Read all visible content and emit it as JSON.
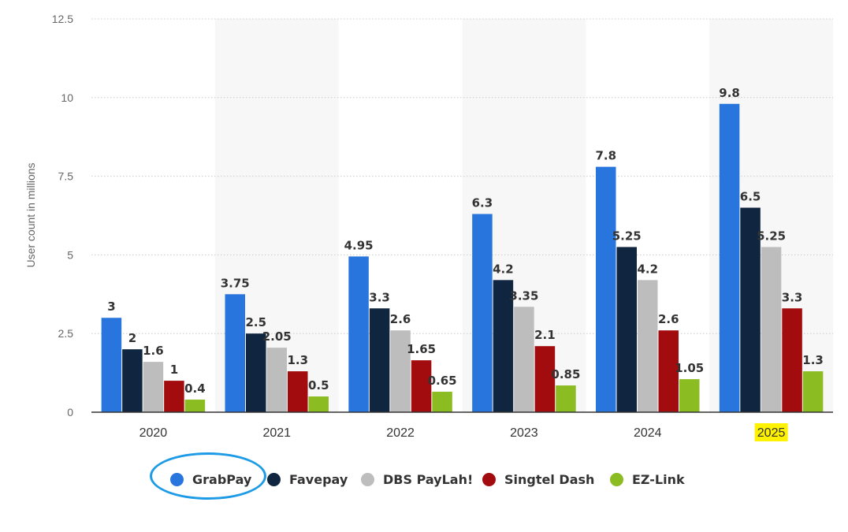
{
  "chart_data": {
    "type": "bar",
    "categories": [
      "2020",
      "2021",
      "2022",
      "2023",
      "2024",
      "2025"
    ],
    "highlighted_category": "2025",
    "highlight_color": "#fff200",
    "ylabel": "User count in millions",
    "ylim": [
      0,
      12.5
    ],
    "yticks": [
      "0",
      "2.5",
      "5",
      "7.5",
      "10",
      "12.5"
    ],
    "grid": true,
    "legend_position": "bottom",
    "series": [
      {
        "name": "GrabPay",
        "color": "#2876dd",
        "values": [
          3,
          3.75,
          4.95,
          6.3,
          7.8,
          9.8
        ],
        "labels": [
          "3",
          "3.75",
          "4.95",
          "6.3",
          "7.8",
          "9.8"
        ]
      },
      {
        "name": "Favepay",
        "color": "#10253f",
        "values": [
          2,
          2.5,
          3.3,
          4.2,
          5.25,
          6.5
        ],
        "labels": [
          "2",
          "2.5",
          "3.3",
          "4.2",
          "5.25",
          "6.5"
        ]
      },
      {
        "name": "DBS PayLah!",
        "color": "#bdbdbd",
        "values": [
          1.6,
          2.05,
          2.6,
          3.35,
          4.2,
          5.25
        ],
        "labels": [
          "1.6",
          "2.05",
          "2.6",
          "3.35",
          "4.2",
          "5.25"
        ]
      },
      {
        "name": "Singtel Dash",
        "color": "#a20c0f",
        "values": [
          1,
          1.3,
          1.65,
          2.1,
          2.6,
          3.3
        ],
        "labels": [
          "1",
          "1.3",
          "1.65",
          "2.1",
          "2.6",
          "3.3"
        ]
      },
      {
        "name": "EZ-Link",
        "color": "#8bbc21",
        "values": [
          0.4,
          0.5,
          0.65,
          0.85,
          1.05,
          1.3
        ],
        "labels": [
          "0.4",
          "0.5",
          "0.65",
          "0.85",
          "1.05",
          "1.3"
        ]
      }
    ]
  },
  "legend": {
    "circled_item": "GrabPay",
    "circle_color": "#1e9be6"
  }
}
